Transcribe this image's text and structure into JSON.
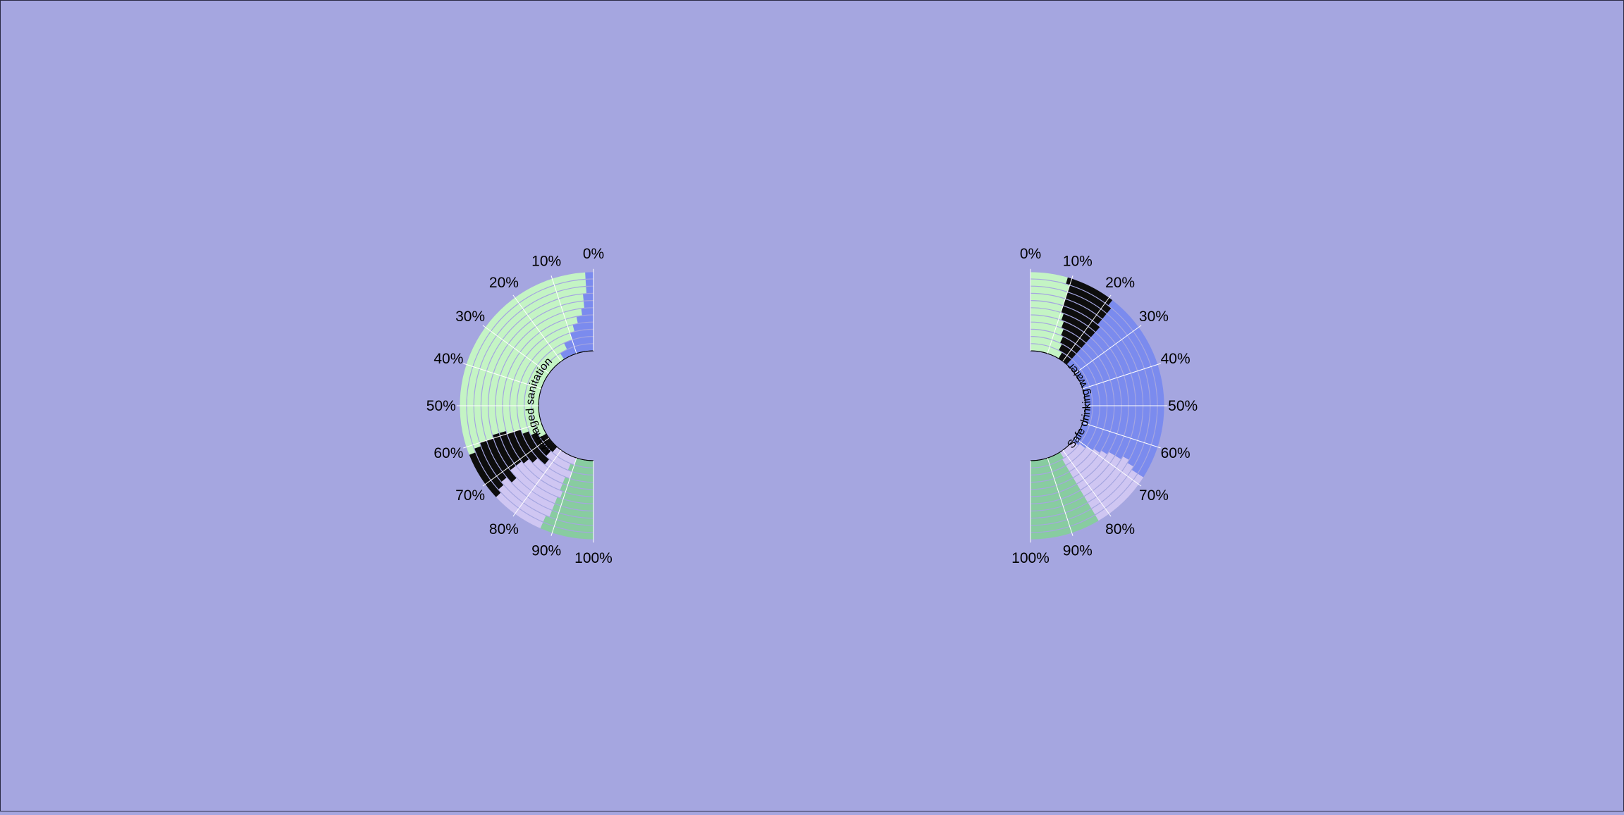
{
  "colors": {
    "background": "#a5a6e0",
    "categories": {
      "safely_managed": "#7b8bee",
      "basic": "#c4f4c4",
      "limited": "#0d0d0d",
      "unimproved": "#cfc6f2",
      "surface": "#88cca0"
    },
    "separator": "#ffffff",
    "axis": "#000000"
  },
  "chart_data": [
    {
      "type": "radial-stacked-bar",
      "side": "left",
      "center_label": "Managed sanitation",
      "tick_labels": [
        "0%",
        "10%",
        "20%",
        "30%",
        "40%",
        "50%",
        "60%",
        "70%",
        "80%",
        "90%",
        "100%"
      ],
      "category_order": [
        "safely_managed",
        "basic",
        "limited",
        "unimproved",
        "surface"
      ],
      "rings": [
        [
          18,
          49,
          10,
          13,
          10
        ],
        [
          14,
          50,
          12,
          12,
          12
        ],
        [
          10,
          52,
          16,
          12,
          10
        ],
        [
          8,
          52,
          14,
          14,
          12
        ],
        [
          6,
          54,
          12,
          16,
          12
        ],
        [
          4,
          55,
          12,
          18,
          11
        ],
        [
          3,
          56,
          12,
          17,
          12
        ],
        [
          3,
          57,
          14,
          14,
          12
        ],
        [
          2,
          58,
          12,
          16,
          12
        ],
        [
          2,
          59,
          12,
          14,
          13
        ],
        [
          2,
          60,
          12,
          13,
          13
        ]
      ]
    },
    {
      "type": "radial-stacked-bar",
      "side": "right",
      "center_label": "Safe drinking water",
      "tick_labels": [
        "0%",
        "10%",
        "20%",
        "30%",
        "40%",
        "50%",
        "60%",
        "70%",
        "80%",
        "90%",
        "100%"
      ],
      "category_order": [
        "basic",
        "limited",
        "safely_managed",
        "unimproved",
        "surface"
      ],
      "rings": [
        [
          17,
          6,
          49,
          10,
          18
        ],
        [
          15,
          8,
          48,
          12,
          17
        ],
        [
          14,
          9,
          47,
          13,
          17
        ],
        [
          13,
          10,
          46,
          14,
          17
        ],
        [
          12,
          11,
          45,
          15,
          17
        ],
        [
          11,
          12,
          44,
          16,
          17
        ],
        [
          10,
          13,
          44,
          16,
          17
        ],
        [
          10,
          12,
          44,
          17,
          17
        ],
        [
          10,
          12,
          45,
          16,
          17
        ],
        [
          10,
          12,
          46,
          15,
          17
        ],
        [
          9,
          12,
          47,
          15,
          17
        ]
      ]
    }
  ]
}
